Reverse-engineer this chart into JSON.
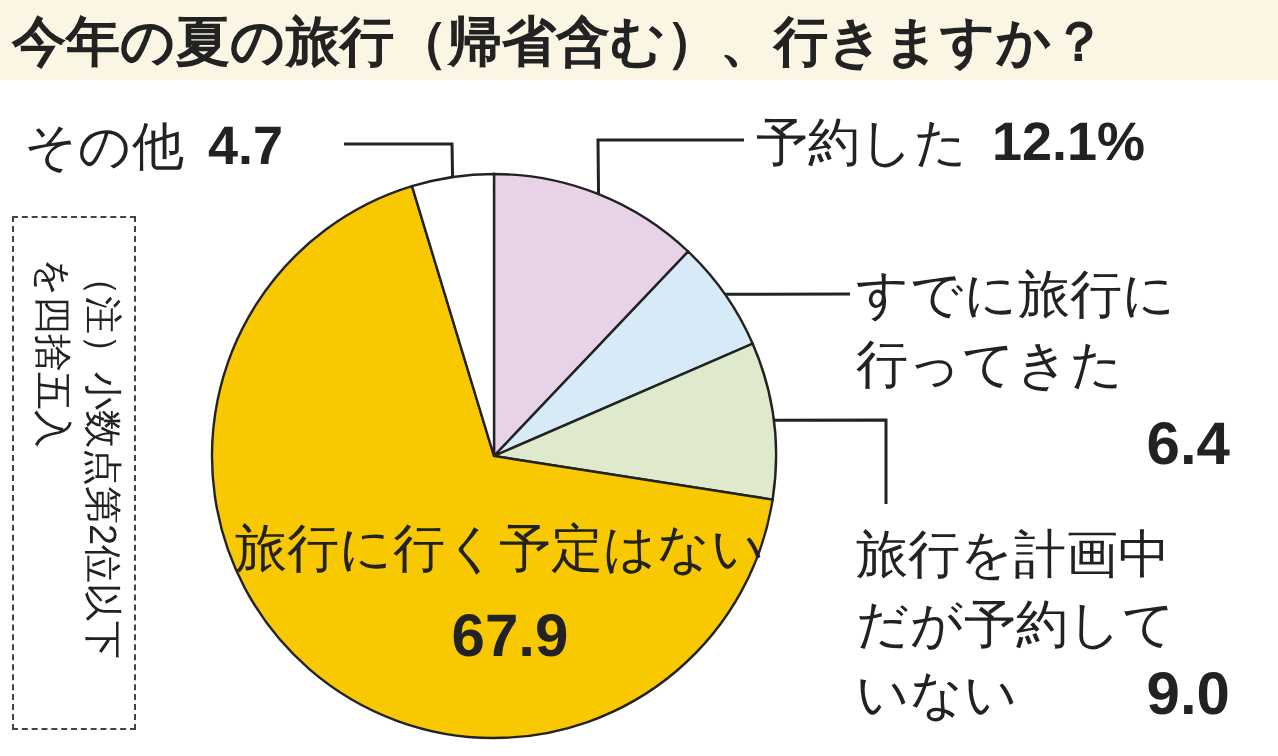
{
  "chart_data": {
    "type": "pie",
    "title": "今年の夏の旅行（帰省含む）、行きますか？",
    "categories": [
      "予約した",
      "すでに旅行に行ってきた",
      "旅行を計画中だが予約していない",
      "旅行に行く予定はない",
      "その他"
    ],
    "values": [
      12.1,
      6.4,
      9.0,
      67.9,
      4.7
    ],
    "colors": [
      "#e8d2e8",
      "#d6eaf8",
      "#dfe9cc",
      "#f8c800",
      "#ffffff"
    ],
    "value_labels": [
      "12.1%",
      "6.4",
      "9.0",
      "67.9",
      "4.7"
    ],
    "annotations": [
      "（注）小数点第2位以下を四捨五入"
    ]
  }
}
